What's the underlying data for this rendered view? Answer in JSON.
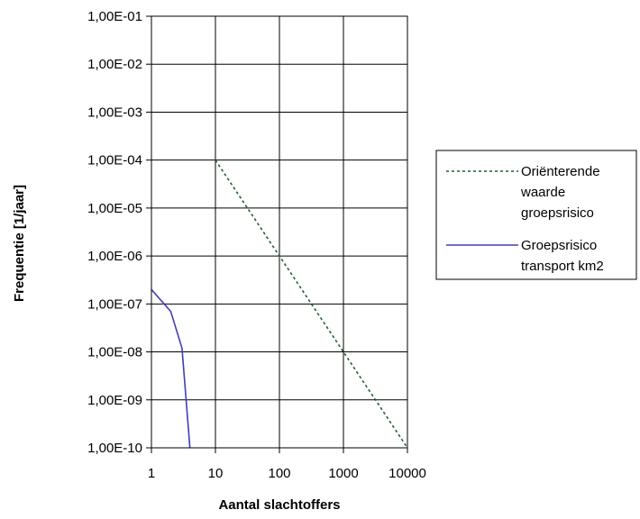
{
  "chart_data": {
    "type": "line",
    "title": "",
    "xlabel": "Aantal slachtoffers",
    "ylabel": "Frequentie [1/jaar]",
    "x_scale": "log",
    "y_scale": "log",
    "xlim": [
      1,
      10000
    ],
    "ylim": [
      1e-10,
      0.1
    ],
    "grid": true,
    "legend_position": "right",
    "x_tick_labels": [
      "1",
      "10",
      "100",
      "1000",
      "10000"
    ],
    "y_tick_labels": [
      "1,00E-01",
      "1,00E-02",
      "1,00E-03",
      "1,00E-04",
      "1,00E-05",
      "1,00E-06",
      "1,00E-07",
      "1,00E-08",
      "1,00E-09",
      "1,00E-10"
    ],
    "series": [
      {
        "name_lines": [
          "Oriënterende",
          "waarde",
          "groepsrisico"
        ],
        "color": "#1f5f2f",
        "style": "dotted",
        "x": [
          10,
          10000
        ],
        "y": [
          0.0001,
          1e-10
        ]
      },
      {
        "name_lines": [
          "Groepsrisico",
          "transport km2"
        ],
        "color": "#3f3fb8",
        "style": "solid",
        "x": [
          1,
          2,
          3,
          4
        ],
        "y": [
          2e-07,
          7e-08,
          1.2e-08,
          1e-10
        ]
      }
    ]
  }
}
